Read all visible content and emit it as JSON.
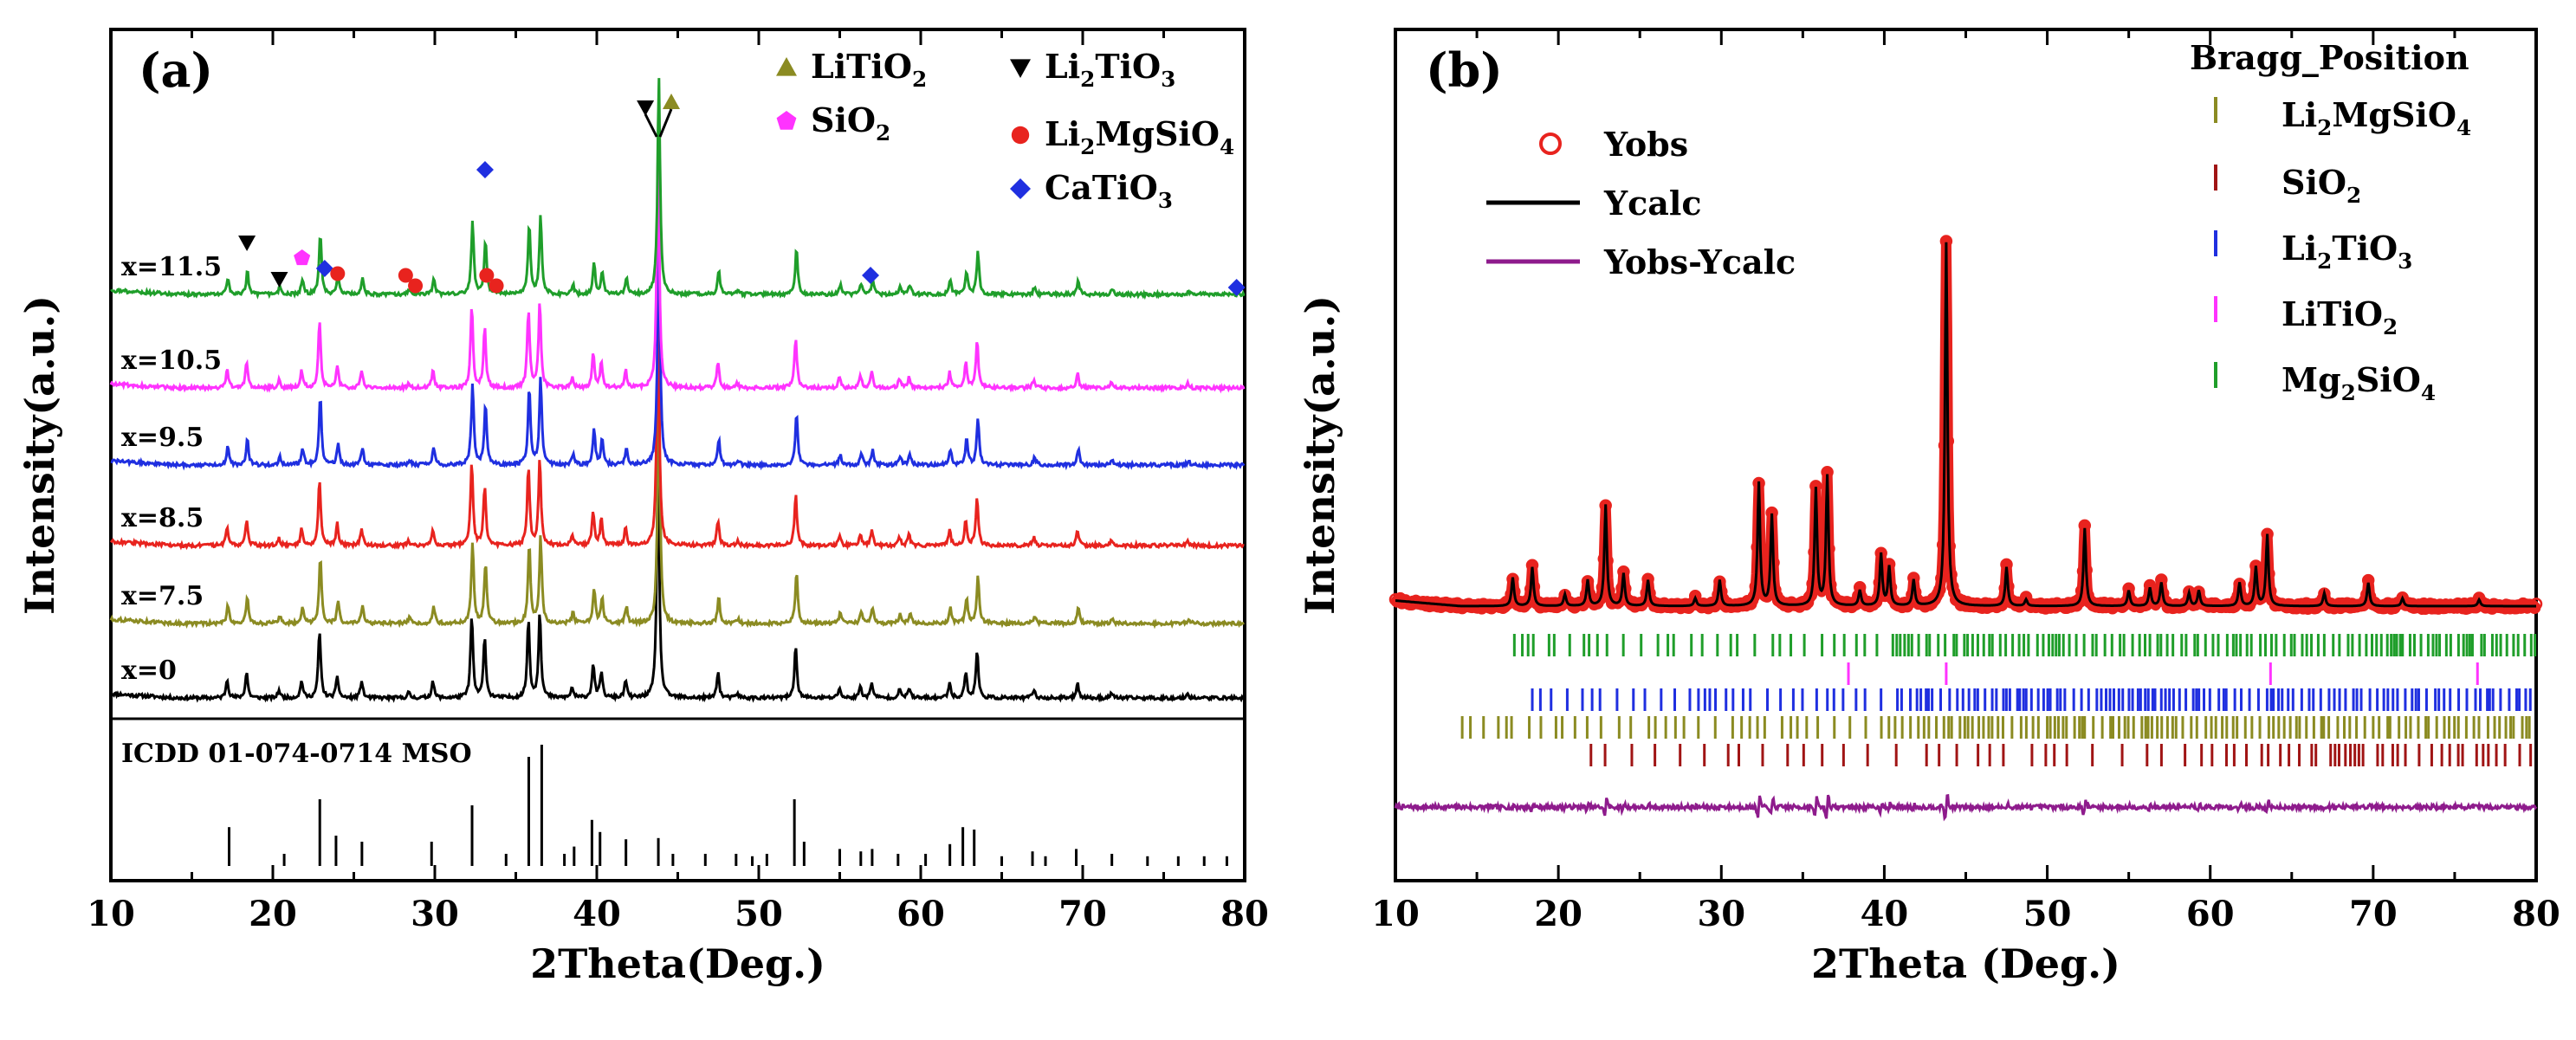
{
  "chart_data": [
    {
      "type": "line",
      "panel_label": "(a)",
      "xlabel": "2Theta(Deg.)",
      "ylabel": "Intensity(a.u.)",
      "xlim": [
        10,
        80
      ],
      "x_ticks": [
        10,
        20,
        30,
        40,
        50,
        60,
        70,
        80
      ],
      "y_ticks_shown": false,
      "legend": {
        "placement": "top-right",
        "entries": [
          {
            "id": "litio2",
            "pre": "LiTiO",
            "sub": "2",
            "post": "",
            "marker": "triangle-up",
            "color": "#8b8b22"
          },
          {
            "id": "li2tio3",
            "pre": "Li",
            "sub": "2",
            "post": "TiO",
            "sub2": "3",
            "marker": "triangle-down",
            "color": "#000000"
          },
          {
            "id": "sio2",
            "pre": "SiO",
            "sub": "2",
            "post": "",
            "marker": "pentagon",
            "color": "#ff33ff"
          },
          {
            "id": "li2mgsio4",
            "pre": "Li",
            "sub": "2",
            "post": "MgSiO",
            "sub2": "4",
            "marker": "circle",
            "color": "#e8231e"
          },
          {
            "id": "catio3",
            "pre": "CaTiO",
            "sub": "3",
            "post": "",
            "marker": "diamond",
            "color": "#1f2fe0"
          }
        ]
      },
      "series": [
        {
          "name": "x=0",
          "color": "#000000",
          "scale": 1.0
        },
        {
          "name": "x=7.5",
          "color": "#8b8b22",
          "scale": 1.0
        },
        {
          "name": "x=8.5",
          "color": "#e8231e",
          "scale": 1.0
        },
        {
          "name": "x=9.5",
          "color": "#1f2fe0",
          "scale": 1.0
        },
        {
          "name": "x=10.5",
          "color": "#ff33ff",
          "scale": 1.0
        },
        {
          "name": "x=11.5",
          "color": "#1f9e2a",
          "scale": 0.9
        }
      ],
      "peaks": [
        {
          "x": 17.2,
          "h": 0.22
        },
        {
          "x": 18.4,
          "h": 0.3
        },
        {
          "x": 20.4,
          "h": 0.09
        },
        {
          "x": 21.8,
          "h": 0.2
        },
        {
          "x": 22.9,
          "h": 0.78
        },
        {
          "x": 24.0,
          "h": 0.25
        },
        {
          "x": 25.5,
          "h": 0.2
        },
        {
          "x": 28.4,
          "h": 0.06
        },
        {
          "x": 29.9,
          "h": 0.2
        },
        {
          "x": 32.3,
          "h": 0.95
        },
        {
          "x": 33.1,
          "h": 0.7
        },
        {
          "x": 35.8,
          "h": 0.9
        },
        {
          "x": 36.5,
          "h": 1.0
        },
        {
          "x": 38.5,
          "h": 0.12
        },
        {
          "x": 39.8,
          "h": 0.4
        },
        {
          "x": 40.3,
          "h": 0.3
        },
        {
          "x": 41.8,
          "h": 0.2
        },
        {
          "x": 43.8,
          "h": 2.8
        },
        {
          "x": 47.5,
          "h": 0.3
        },
        {
          "x": 48.7,
          "h": 0.05
        },
        {
          "x": 52.3,
          "h": 0.6
        },
        {
          "x": 55.0,
          "h": 0.12
        },
        {
          "x": 56.3,
          "h": 0.14
        },
        {
          "x": 57.0,
          "h": 0.18
        },
        {
          "x": 58.7,
          "h": 0.1
        },
        {
          "x": 59.3,
          "h": 0.12
        },
        {
          "x": 61.8,
          "h": 0.18
        },
        {
          "x": 62.8,
          "h": 0.3
        },
        {
          "x": 63.5,
          "h": 0.55
        },
        {
          "x": 67.0,
          "h": 0.1
        },
        {
          "x": 69.7,
          "h": 0.18
        },
        {
          "x": 71.8,
          "h": 0.06
        },
        {
          "x": 76.5,
          "h": 0.05
        }
      ],
      "markers_on_top_pattern": [
        {
          "phase": "li2tio3",
          "x": 18.4
        },
        {
          "phase": "li2tio3",
          "x": 20.4
        },
        {
          "phase": "sio2",
          "x": 21.8
        },
        {
          "phase": "catio3",
          "x": 23.2
        },
        {
          "phase": "li2mgsio4",
          "x": 24.0
        },
        {
          "phase": "li2mgsio4",
          "x": 28.2
        },
        {
          "phase": "li2mgsio4",
          "x": 28.8
        },
        {
          "phase": "catio3",
          "x": 33.1
        },
        {
          "phase": "li2mgsio4",
          "x": 33.2
        },
        {
          "phase": "li2mgsio4",
          "x": 33.8
        },
        {
          "phase": "li2tio3",
          "x": 43.0
        },
        {
          "phase": "litio2",
          "x": 44.6
        },
        {
          "phase": "catio3",
          "x": 56.9
        },
        {
          "phase": "catio3",
          "x": 79.5
        }
      ],
      "reference_pattern": {
        "label": "ICDD 01-074-0714 MSO",
        "sticks": [
          {
            "x": 17.3,
            "h": 0.32
          },
          {
            "x": 20.7,
            "h": 0.1
          },
          {
            "x": 22.9,
            "h": 0.55
          },
          {
            "x": 23.9,
            "h": 0.25
          },
          {
            "x": 25.5,
            "h": 0.2
          },
          {
            "x": 29.8,
            "h": 0.2
          },
          {
            "x": 32.3,
            "h": 0.5
          },
          {
            "x": 34.4,
            "h": 0.1
          },
          {
            "x": 35.8,
            "h": 0.9
          },
          {
            "x": 36.6,
            "h": 1.0
          },
          {
            "x": 38.0,
            "h": 0.1
          },
          {
            "x": 38.6,
            "h": 0.16
          },
          {
            "x": 39.7,
            "h": 0.38
          },
          {
            "x": 40.2,
            "h": 0.28
          },
          {
            "x": 41.8,
            "h": 0.22
          },
          {
            "x": 43.8,
            "h": 0.23
          },
          {
            "x": 44.7,
            "h": 0.1
          },
          {
            "x": 46.7,
            "h": 0.1
          },
          {
            "x": 48.6,
            "h": 0.1
          },
          {
            "x": 49.6,
            "h": 0.08
          },
          {
            "x": 50.5,
            "h": 0.1
          },
          {
            "x": 52.2,
            "h": 0.55
          },
          {
            "x": 52.8,
            "h": 0.2
          },
          {
            "x": 55.0,
            "h": 0.14
          },
          {
            "x": 56.3,
            "h": 0.12
          },
          {
            "x": 57.0,
            "h": 0.14
          },
          {
            "x": 58.6,
            "h": 0.1
          },
          {
            "x": 60.3,
            "h": 0.1
          },
          {
            "x": 61.8,
            "h": 0.18
          },
          {
            "x": 62.6,
            "h": 0.32
          },
          {
            "x": 63.3,
            "h": 0.3
          },
          {
            "x": 65.0,
            "h": 0.08
          },
          {
            "x": 66.9,
            "h": 0.12
          },
          {
            "x": 67.7,
            "h": 0.08
          },
          {
            "x": 69.6,
            "h": 0.14
          },
          {
            "x": 71.8,
            "h": 0.1
          },
          {
            "x": 74.0,
            "h": 0.08
          },
          {
            "x": 75.9,
            "h": 0.08
          },
          {
            "x": 77.5,
            "h": 0.08
          },
          {
            "x": 78.9,
            "h": 0.08
          }
        ]
      }
    },
    {
      "type": "line",
      "panel_label": "(b)",
      "xlabel": "2Theta (Deg.)",
      "ylabel": "Intensity(a.u.)",
      "xlim": [
        10,
        80
      ],
      "x_ticks": [
        10,
        20,
        30,
        40,
        50,
        60,
        70,
        80
      ],
      "y_ticks_shown": false,
      "legend": {
        "placement": "top-left",
        "entries": [
          {
            "name": "Yobs",
            "style": "open-circle",
            "color": "#e8231e"
          },
          {
            "name": "Ycalc",
            "style": "line",
            "color": "#000000"
          },
          {
            "name": "Yobs-Ycalc",
            "style": "line",
            "color": "#8e1b8c"
          }
        ]
      },
      "bragg_legend": {
        "title": "Bragg_Position",
        "placement": "top-right",
        "entries": [
          {
            "id": "li2mgsio4",
            "pre": "Li",
            "sub": "2",
            "post": "MgSiO",
            "sub2": "4",
            "color": "#8b8b22"
          },
          {
            "id": "sio2",
            "pre": "SiO",
            "sub": "2",
            "post": "",
            "color": "#a01414"
          },
          {
            "id": "li2tio3",
            "pre": "Li",
            "sub": "2",
            "post": "TiO",
            "sub2": "3",
            "color": "#1f2fe0"
          },
          {
            "id": "litio2",
            "pre": "LiTiO",
            "sub": "2",
            "post": "",
            "color": "#ff33ff"
          },
          {
            "id": "mg2sio4",
            "pre": "Mg",
            "sub": "2",
            "post": "SiO",
            "sub2": "4",
            "color": "#1f9e2a"
          }
        ]
      },
      "bragg_rows": [
        {
          "id": "mg2sio4",
          "color": "#1f9e2a",
          "start": 17.3,
          "density": "dense"
        },
        {
          "id": "litio2",
          "color": "#ff33ff",
          "positions": [
            37.8,
            43.8,
            63.7,
            76.4
          ]
        },
        {
          "id": "li2tio3",
          "color": "#1f2fe0",
          "start": 18.4,
          "density": "dense"
        },
        {
          "id": "li2mgsio4",
          "color": "#8b8b22",
          "start": 14.1,
          "density": "dense"
        },
        {
          "id": "sio2",
          "color": "#a01414",
          "start": 22.0,
          "density": "medium"
        }
      ]
    }
  ]
}
